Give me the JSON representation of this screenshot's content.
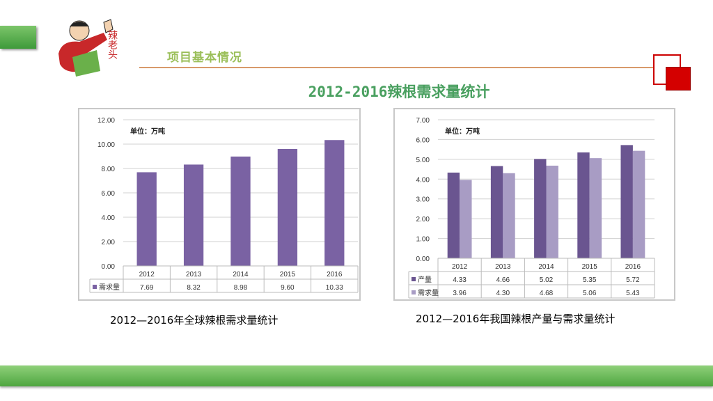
{
  "header": {
    "section_title": "项目基本情况",
    "main_title": "2012-2016辣根需求量统计",
    "logo_text": "辣老头"
  },
  "colors": {
    "series1": "#7a62a3",
    "series2": "#a89cc4",
    "dark": "#6a5590",
    "green": "#5cb048",
    "red": "#d40000"
  },
  "chart_data": [
    {
      "type": "bar",
      "unit_label": "单位：万吨",
      "categories": [
        "2012",
        "2013",
        "2014",
        "2015",
        "2016"
      ],
      "series": [
        {
          "name": "需求量",
          "values": [
            7.69,
            8.32,
            8.98,
            9.6,
            10.33
          ]
        }
      ],
      "ylim": [
        0,
        12
      ],
      "yticks": [
        "0.00",
        "2.00",
        "4.00",
        "6.00",
        "8.00",
        "10.00",
        "12.00"
      ],
      "grid": true,
      "legend": "data-table",
      "caption": "2012—2016年全球辣根需求量统计"
    },
    {
      "type": "bar",
      "unit_label": "单位：万吨",
      "categories": [
        "2012",
        "2013",
        "2014",
        "2015",
        "2016"
      ],
      "series": [
        {
          "name": "产量",
          "values": [
            4.33,
            4.66,
            5.02,
            5.35,
            5.72
          ]
        },
        {
          "name": "需求量",
          "values": [
            3.96,
            4.3,
            4.68,
            5.06,
            5.43
          ]
        }
      ],
      "ylim": [
        0,
        7
      ],
      "yticks": [
        "0.00",
        "1.00",
        "2.00",
        "3.00",
        "4.00",
        "5.00",
        "6.00",
        "7.00"
      ],
      "grid": true,
      "legend": "data-table",
      "caption": "2012—2016年我国辣根产量与需求量统计"
    }
  ]
}
